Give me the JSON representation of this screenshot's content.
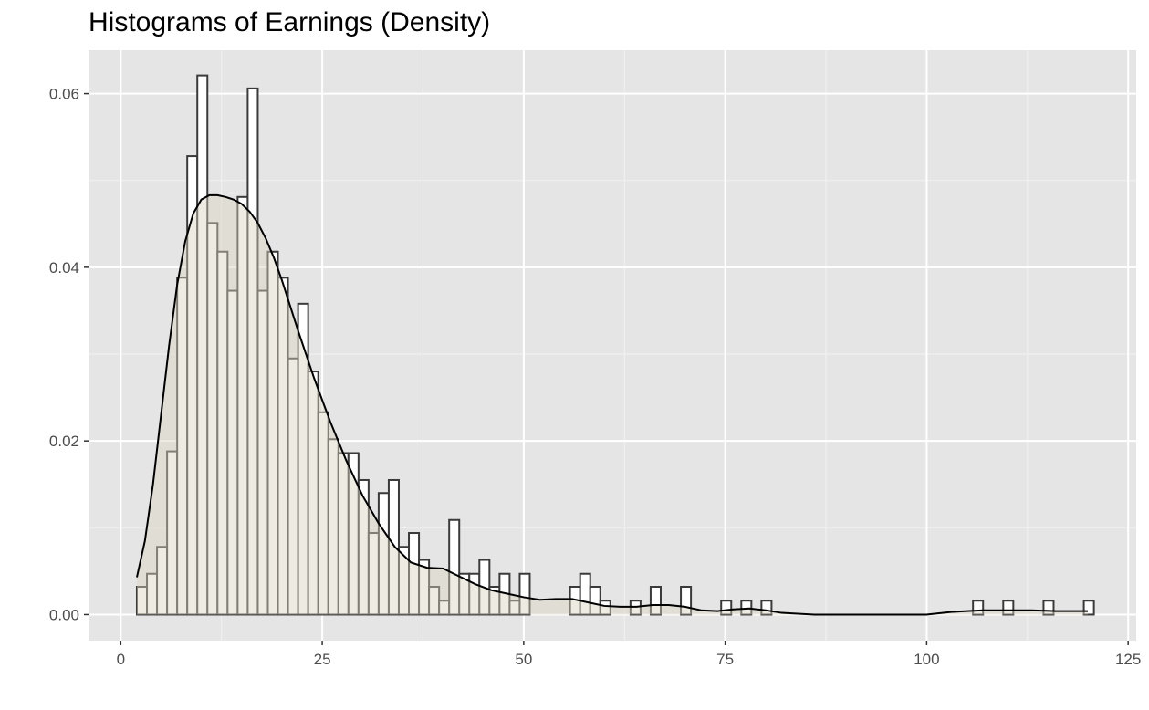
{
  "chart_data": {
    "type": "bar",
    "title": "Histograms of Earnings (Density)",
    "xlabel": "",
    "ylabel": "",
    "xlim": [
      -4,
      126
    ],
    "ylim": [
      -0.003,
      0.065
    ],
    "x_ticks": [
      0,
      25,
      50,
      75,
      100,
      125
    ],
    "x_tick_labels": [
      "0",
      "25",
      "50",
      "75",
      "100",
      "125"
    ],
    "y_ticks": [
      0.0,
      0.02,
      0.04,
      0.06
    ],
    "y_tick_labels": [
      "0.00",
      "0.02",
      "0.04",
      "0.06"
    ],
    "grid": true,
    "legend": "none",
    "bin_width": 1.25,
    "histogram": {
      "bin_start": [
        2.0,
        3.25,
        4.5,
        5.75,
        7.0,
        8.25,
        9.5,
        10.75,
        12.0,
        13.25,
        14.5,
        15.75,
        17.0,
        18.25,
        19.5,
        20.75,
        22.0,
        23.25,
        24.5,
        25.75,
        27.0,
        28.25,
        29.5,
        30.75,
        32.0,
        33.25,
        34.5,
        35.75,
        37.0,
        38.25,
        39.5,
        40.75,
        42.0,
        43.25,
        44.5,
        45.75,
        47.0,
        48.25,
        49.5,
        50.75,
        52.0,
        53.25,
        54.5,
        55.75,
        57.0,
        58.25,
        59.5,
        60.75,
        62.0,
        63.25,
        64.5,
        65.75,
        67.0,
        68.25,
        69.5,
        70.75,
        72.0,
        73.25,
        74.5,
        75.75,
        77.0,
        78.25,
        79.5,
        80.75,
        82.0,
        83.25,
        84.5,
        85.75,
        87.0,
        88.25,
        89.5,
        90.75,
        92.0,
        93.25,
        94.5,
        95.75,
        97.0,
        98.25,
        99.5,
        100.75,
        102.0,
        103.25,
        104.5,
        105.75,
        107.0,
        108.25,
        109.5,
        110.75,
        112.0,
        113.25,
        114.5,
        115.75,
        117.0,
        118.25,
        119.5
      ],
      "density": [
        0.0032,
        0.0047,
        0.0078,
        0.0188,
        0.0388,
        0.0528,
        0.0621,
        0.0451,
        0.0418,
        0.0373,
        0.0481,
        0.0606,
        0.0373,
        0.0418,
        0.0388,
        0.0295,
        0.0358,
        0.028,
        0.0233,
        0.0202,
        0.0186,
        0.0186,
        0.0155,
        0.0094,
        0.014,
        0.0155,
        0.0078,
        0.0094,
        0.0063,
        0.0032,
        0.0016,
        0.0109,
        0.0047,
        0.0047,
        0.0063,
        0.0032,
        0.0047,
        0.0016,
        0.0047,
        0.0,
        0.0,
        0.0,
        0.0,
        0.0032,
        0.0047,
        0.0032,
        0.0016,
        0.0,
        0.0,
        0.0016,
        0.0,
        0.0032,
        0.0,
        0.0,
        0.0032,
        0.0,
        0.0,
        0.0,
        0.0016,
        0.0,
        0.0016,
        0.0,
        0.0016,
        0.0,
        0.0,
        0.0,
        0.0,
        0.0,
        0.0,
        0.0,
        0.0,
        0.0,
        0.0,
        0.0,
        0.0,
        0.0,
        0.0,
        0.0,
        0.0,
        0.0,
        0.0,
        0.0,
        0.0,
        0.0016,
        0.0,
        0.0,
        0.0016,
        0.0,
        0.0,
        0.0,
        0.0016,
        0.0,
        0.0,
        0.0,
        0.0016
      ]
    },
    "density_curve": {
      "x": [
        2.0,
        3.0,
        4.0,
        5.0,
        6.0,
        7.0,
        8.0,
        9.0,
        10.0,
        11.0,
        12.0,
        13.0,
        14.0,
        15.0,
        16.0,
        17.0,
        18.0,
        19.0,
        20.0,
        22.0,
        24.0,
        26.0,
        28.0,
        30.0,
        32.0,
        34.0,
        36.0,
        38.0,
        40.0,
        42.0,
        44.0,
        46.0,
        48.0,
        50.0,
        52.0,
        54.0,
        56.0,
        58.0,
        60.0,
        62.0,
        64.0,
        66.0,
        68.0,
        70.0,
        72.0,
        74.0,
        76.0,
        78.0,
        80.0,
        82.0,
        84.0,
        86.0,
        90.0,
        95.0,
        100.0,
        103.0,
        105.0,
        107.0,
        110.0,
        113.0,
        116.0,
        118.0,
        120.0
      ],
      "y": [
        0.0043,
        0.0085,
        0.015,
        0.023,
        0.031,
        0.038,
        0.043,
        0.0462,
        0.0478,
        0.0483,
        0.0483,
        0.0481,
        0.0478,
        0.0473,
        0.0464,
        0.0451,
        0.0433,
        0.0411,
        0.0385,
        0.0327,
        0.0272,
        0.0222,
        0.0177,
        0.0137,
        0.0105,
        0.0078,
        0.006,
        0.0054,
        0.0053,
        0.0044,
        0.0035,
        0.0028,
        0.0024,
        0.002,
        0.0017,
        0.0018,
        0.0018,
        0.0014,
        0.001,
        0.0009,
        0.0009,
        0.0011,
        0.0011,
        0.0009,
        0.0005,
        0.0004,
        0.0006,
        0.0007,
        0.0005,
        0.0002,
        0.0001,
        0.0,
        0.0,
        0.0,
        0.0,
        0.0003,
        0.0004,
        0.0005,
        0.0005,
        0.0005,
        0.0004,
        0.0004,
        0.0004
      ]
    },
    "colors": {
      "panel_background": "#e5e5e5",
      "grid_major": "#ffffff",
      "grid_minor": "#f2f2f2",
      "bar_fill": "#ffffff",
      "bar_stroke": "#3a3a3a",
      "density_fill": "#d9d2bf",
      "density_line": "#000000",
      "tick_text": "#4d4d4d"
    }
  }
}
